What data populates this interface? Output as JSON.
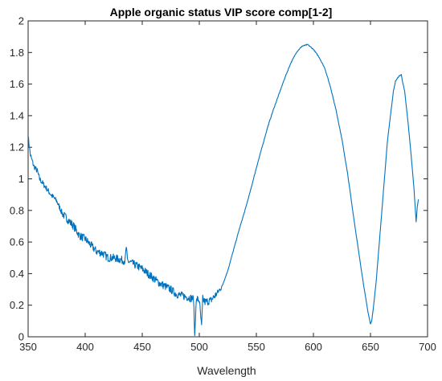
{
  "chart_data": {
    "type": "line",
    "title": "Apple organic status VIP score comp[1-2]",
    "xlabel": "Wavelength",
    "ylabel": "",
    "xlim": [
      350,
      700
    ],
    "ylim": [
      0,
      2
    ],
    "xticks": [
      350,
      400,
      450,
      500,
      550,
      600,
      650,
      700
    ],
    "yticks": [
      0,
      0.2,
      0.4,
      0.6,
      0.8,
      1,
      1.2,
      1.4,
      1.6,
      1.8,
      2
    ],
    "xtick_labels": [
      "350",
      "400",
      "450",
      "500",
      "550",
      "600",
      "650",
      "700"
    ],
    "ytick_labels": [
      "0",
      "0.2",
      "0.4",
      "0.6",
      "0.8",
      "1",
      "1.2",
      "1.4",
      "1.6",
      "1.8",
      "2"
    ],
    "grid": false,
    "line_color": "#0072BD",
    "series": [
      {
        "x": [
          350,
          352,
          355,
          358,
          360,
          365,
          370,
          375,
          380,
          385,
          390,
          395,
          400,
          405,
          410,
          415,
          420,
          425,
          430,
          435,
          436,
          437,
          440,
          445,
          450,
          455,
          460,
          465,
          470,
          475,
          480,
          485,
          490,
          495,
          496,
          497,
          498,
          500,
          502,
          503,
          505,
          510,
          515,
          520,
          525,
          530,
          535,
          540,
          545,
          550,
          555,
          560,
          565,
          570,
          575,
          580,
          585,
          590,
          595,
          600,
          605,
          610,
          615,
          620,
          625,
          630,
          635,
          640,
          645,
          648,
          650,
          651,
          652,
          655,
          660,
          665,
          670,
          672,
          675,
          677,
          678,
          680,
          683,
          685,
          688,
          690,
          691,
          692
        ],
        "y": [
          1.27,
          1.15,
          1.08,
          1.05,
          1.0,
          0.95,
          0.9,
          0.86,
          0.78,
          0.74,
          0.7,
          0.64,
          0.62,
          0.58,
          0.54,
          0.53,
          0.5,
          0.5,
          0.49,
          0.48,
          0.57,
          0.48,
          0.47,
          0.45,
          0.43,
          0.4,
          0.37,
          0.34,
          0.32,
          0.3,
          0.27,
          0.26,
          0.25,
          0.24,
          0.0,
          0.2,
          0.24,
          0.23,
          0.06,
          0.24,
          0.22,
          0.23,
          0.27,
          0.32,
          0.42,
          0.55,
          0.68,
          0.8,
          0.93,
          1.07,
          1.2,
          1.33,
          1.44,
          1.54,
          1.64,
          1.73,
          1.8,
          1.84,
          1.85,
          1.82,
          1.77,
          1.7,
          1.58,
          1.43,
          1.25,
          1.03,
          0.77,
          0.52,
          0.28,
          0.15,
          0.08,
          0.1,
          0.15,
          0.35,
          0.8,
          1.25,
          1.55,
          1.62,
          1.65,
          1.66,
          1.62,
          1.55,
          1.35,
          1.2,
          0.95,
          0.73,
          0.82,
          0.87
        ]
      }
    ]
  }
}
